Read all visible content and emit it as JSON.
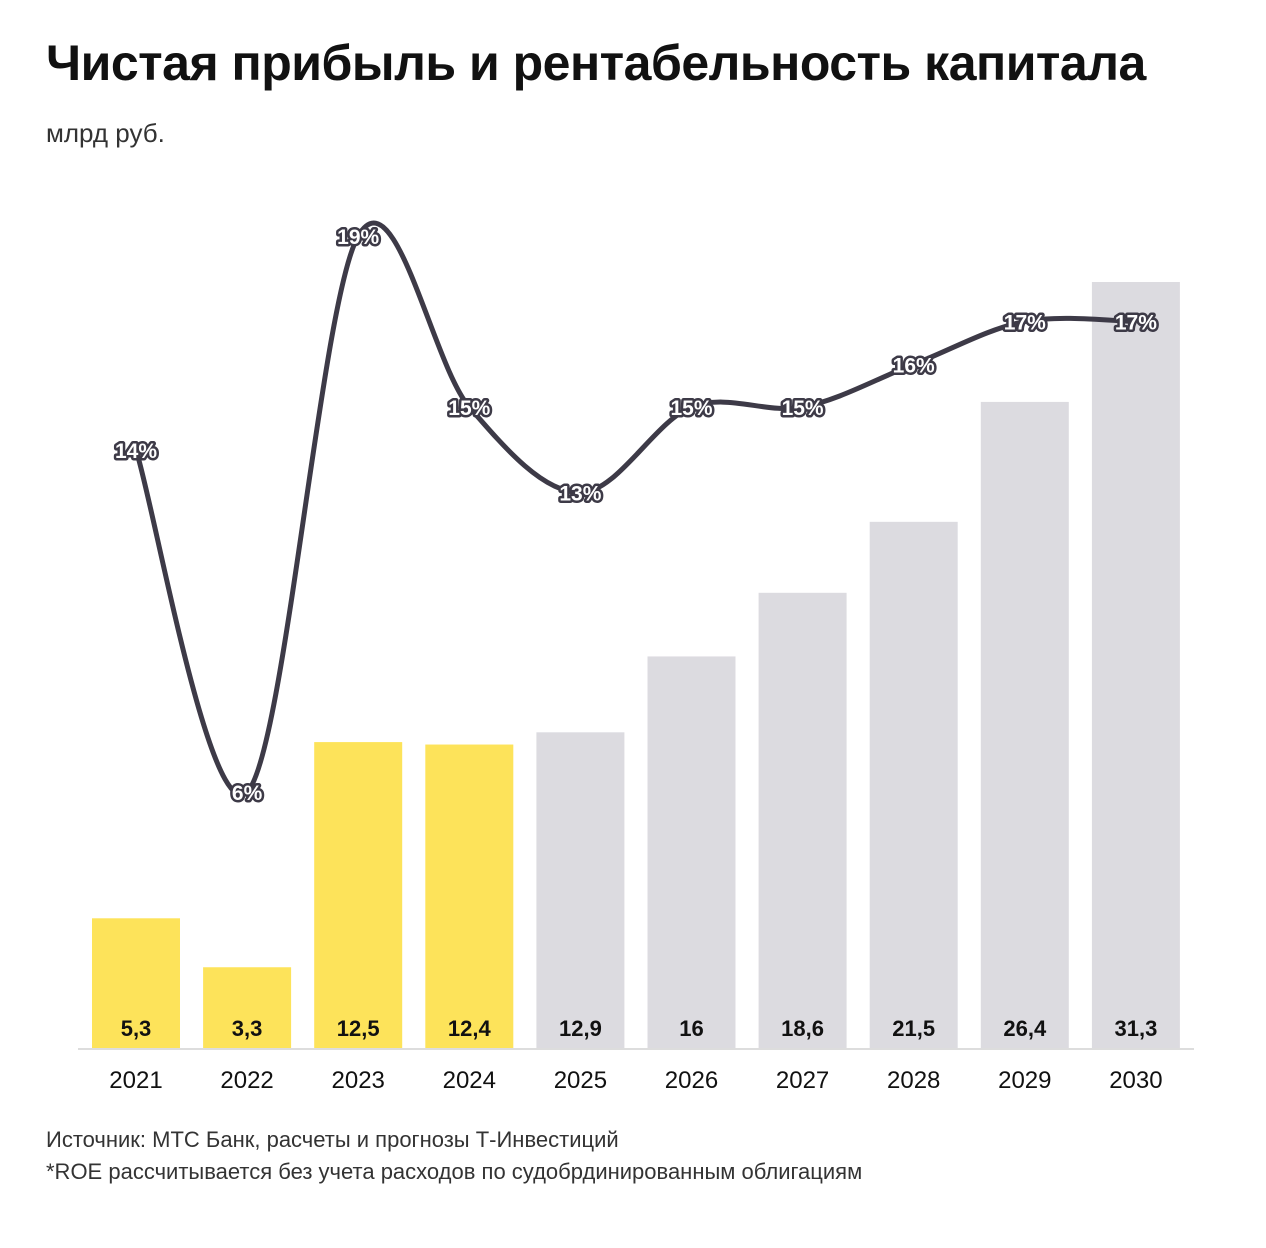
{
  "title": "Чистая прибыль и рентабельность капитала",
  "subtitle": "млрд руб.",
  "footer": {
    "source": "Источник: МТС Банк, расчеты и прогнозы Т-Инвестиций",
    "note": "*ROE рассчитывается без учета расходов по судобрдинированным облигациям"
  },
  "colors": {
    "actual": "#fde35a",
    "forecast": "#dcdbe0",
    "line": "#3d3a47",
    "axis": "#dddddd"
  },
  "chart_data": {
    "type": "bar",
    "categories": [
      "2021",
      "2022",
      "2023",
      "2024",
      "2025",
      "2026",
      "2027",
      "2028",
      "2029",
      "2030"
    ],
    "bar_labels": [
      "5,3",
      "3,3",
      "12,5",
      "12,4",
      "12,9",
      "16",
      "18,6",
      "21,5",
      "26,4",
      "31,3"
    ],
    "series": [
      {
        "type": "bar",
        "values": [
          5.3,
          3.3,
          12.5,
          12.4,
          12.9,
          16,
          18.6,
          21.5,
          26.4,
          31.3
        ],
        "kind": [
          "actual",
          "actual",
          "actual",
          "actual",
          "forecast",
          "forecast",
          "forecast",
          "forecast",
          "forecast",
          "forecast"
        ]
      },
      {
        "type": "line",
        "values": [
          14,
          6,
          19,
          15,
          13,
          15,
          15,
          16,
          17,
          17
        ],
        "labels": [
          "14%",
          "6%",
          "19%",
          "15%",
          "13%",
          "15%",
          "15%",
          "16%",
          "17%",
          "17%"
        ]
      }
    ],
    "ylim": [
      0,
      31.3
    ],
    "grid": false,
    "legend": "none"
  }
}
